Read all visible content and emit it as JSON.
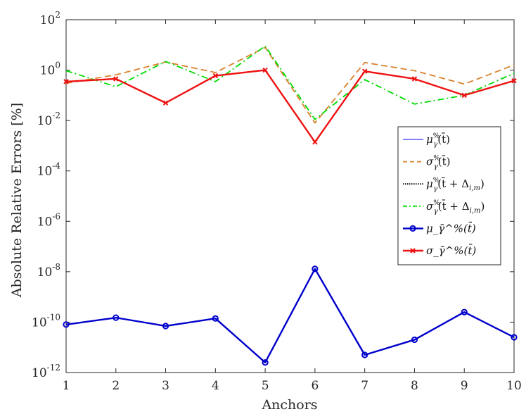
{
  "chart_data": {
    "type": "line",
    "title": "",
    "xlabel": "Anchors",
    "ylabel": "Absolute Relative Errors [%]",
    "yscale": "log",
    "xlim": [
      1,
      10
    ],
    "ylim": [
      1e-12,
      100
    ],
    "grid": false,
    "legend_position": "right",
    "x": [
      1,
      2,
      3,
      4,
      5,
      6,
      7,
      8,
      9,
      10
    ],
    "xticks": [
      "1",
      "2",
      "3",
      "4",
      "5",
      "6",
      "7",
      "8",
      "9",
      "10"
    ],
    "yticks": [
      {
        "value": 1e-12,
        "base": "10",
        "exp": "-12"
      },
      {
        "value": 1e-10,
        "base": "10",
        "exp": "-10"
      },
      {
        "value": 1e-08,
        "base": "10",
        "exp": "-8"
      },
      {
        "value": 1e-06,
        "base": "10",
        "exp": "-6"
      },
      {
        "value": 0.0001,
        "base": "10",
        "exp": "-4"
      },
      {
        "value": 0.01,
        "base": "10",
        "exp": "-2"
      },
      {
        "value": 1,
        "base": "10",
        "exp": "0"
      },
      {
        "value": 100,
        "base": "10",
        "exp": "2"
      }
    ],
    "series": [
      {
        "id": "mu",
        "name": "μ_γ^%(t̄)",
        "color": "#0000ff",
        "style": "solid-thin",
        "marker": "none",
        "values": null
      },
      {
        "id": "sigma",
        "name": "σ_γ^%(t̄)",
        "color": "#d9822b",
        "style": "dashed",
        "marker": "none",
        "values": [
          0.3,
          0.65,
          2.1,
          0.8,
          8.0,
          0.008,
          2.0,
          0.95,
          0.28,
          1.6
        ]
      },
      {
        "id": "mu-delta",
        "name": "μ_γ^%(t̄ + Δ_{i,m})",
        "color": "#000000",
        "style": "dotted",
        "marker": "none",
        "values": null
      },
      {
        "id": "sigma-delta",
        "name": "σ_γ^%(t̄ + Δ_{i,m})",
        "color": "#00dd00",
        "style": "dashdot",
        "marker": "none",
        "values": [
          0.95,
          0.22,
          2.2,
          0.35,
          9.0,
          0.011,
          0.42,
          0.045,
          0.1,
          0.75
        ]
      },
      {
        "id": "mu-bar",
        "name": "μ_γ̄^%(t̄)",
        "color": "#0000cc",
        "style": "solid-thick",
        "marker": "circle",
        "values": [
          8e-11,
          1.5e-10,
          7e-11,
          1.4e-10,
          2.5e-12,
          1.3e-08,
          5e-12,
          2e-11,
          2.5e-10,
          2.5e-11
        ]
      },
      {
        "id": "sigma-bar",
        "name": "σ_γ̄^%(t̄)",
        "color": "#ee1111",
        "style": "solid-thick",
        "marker": "x",
        "values": [
          0.35,
          0.45,
          0.05,
          0.6,
          1.0,
          0.0014,
          0.9,
          0.45,
          0.1,
          0.38
        ]
      }
    ]
  }
}
